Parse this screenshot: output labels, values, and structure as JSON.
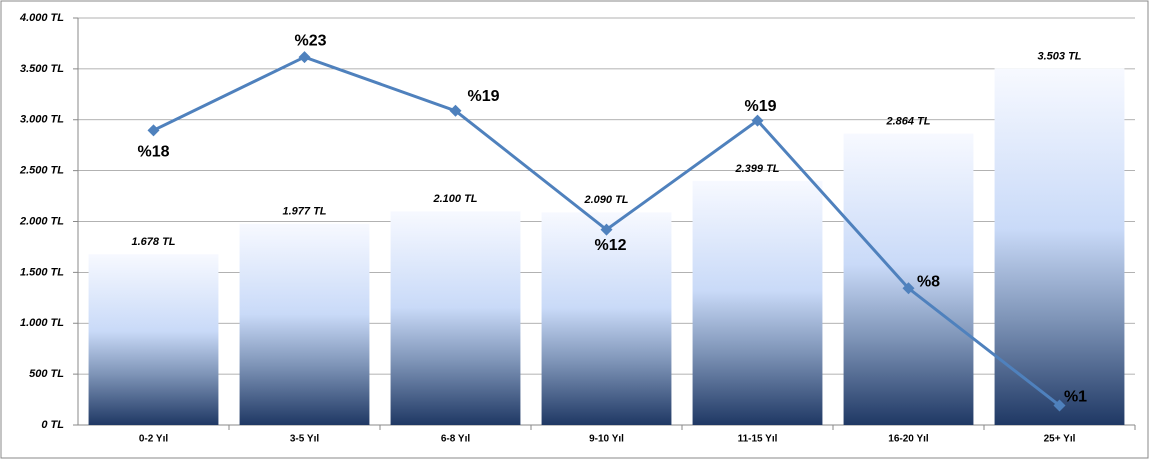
{
  "chart_data": {
    "type": "bar",
    "categories": [
      "0-2 Yıl",
      "3-5 Yıl",
      "6-8 Yıl",
      "9-10 Yıl",
      "11-15 Yıl",
      "16-20 Yıl",
      "25+ Yıl"
    ],
    "series": [
      {
        "type": "bar",
        "color": "#1f3864",
        "values": [
          1678,
          1977,
          2100,
          2090,
          2399,
          2864,
          3503
        ],
        "value_labels": [
          "1.678 TL",
          "1.977 TL",
          "2.100 TL",
          "2.090 TL",
          "2.399 TL",
          "2.864 TL",
          "3.503 TL"
        ]
      },
      {
        "type": "line",
        "axis": "y2",
        "color": "#4f81bd",
        "values": [
          18.1,
          22.6,
          19.3,
          12,
          18.7,
          8.4,
          1.2
        ],
        "value_labels": [
          "%18",
          "%23",
          "%19",
          "%12",
          "%19",
          "%8",
          "%1"
        ]
      }
    ],
    "ylim": [
      0,
      4000
    ],
    "yticks": [
      {
        "value": 0,
        "label": "0 TL"
      },
      {
        "value": 500,
        "label": "500 TL"
      },
      {
        "value": 1000,
        "label": "1.000 TL"
      },
      {
        "value": 1500,
        "label": "1.500 TL"
      },
      {
        "value": 2000,
        "label": "2.000 TL"
      },
      {
        "value": 2500,
        "label": "2.500 TL"
      },
      {
        "value": 3000,
        "label": "3.000 TL"
      },
      {
        "value": 3500,
        "label": "3.500 TL"
      },
      {
        "value": 4000,
        "label": "4.000 TL"
      }
    ],
    "y2lim": [
      0,
      25
    ],
    "grid": true
  }
}
